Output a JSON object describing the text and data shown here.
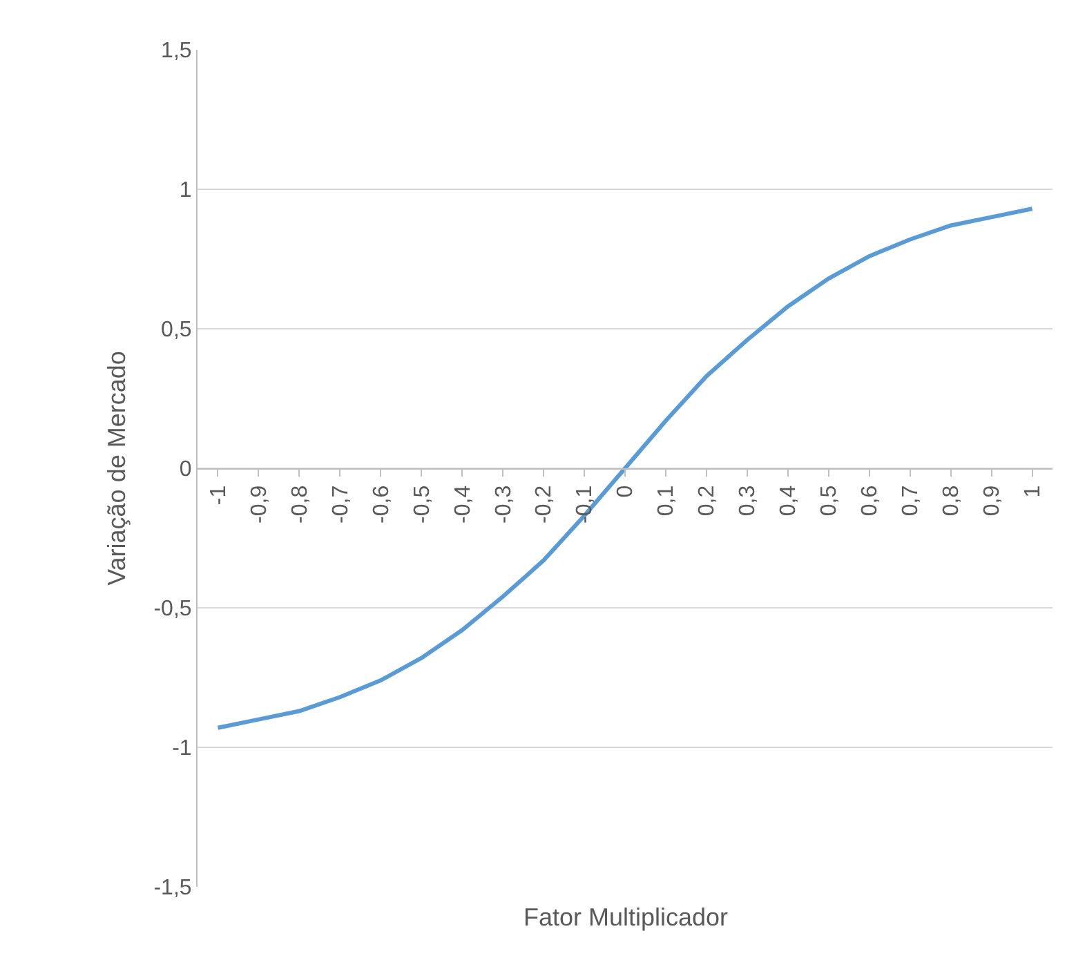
{
  "chart_data": {
    "type": "line",
    "xlabel": "Fator Multiplicador",
    "ylabel": "Variação de Mercado",
    "categories": [
      "-1",
      "-0,9",
      "-0,8",
      "-0,7",
      "-0,6",
      "-0,5",
      "-0,4",
      "-0,3",
      "-0,2",
      "-0,1",
      "0",
      "0,1",
      "0,2",
      "0,3",
      "0,4",
      "0,5",
      "0,6",
      "0,7",
      "0,8",
      "0,9",
      "1"
    ],
    "series": [
      {
        "color": "#5b9bd5",
        "values": [
          -0.93,
          -0.9,
          -0.87,
          -0.82,
          -0.76,
          -0.68,
          -0.58,
          -0.46,
          -0.33,
          -0.17,
          0,
          0.17,
          0.33,
          0.46,
          0.58,
          0.68,
          0.76,
          0.82,
          0.87,
          0.9,
          0.93
        ]
      }
    ],
    "ylim": [
      -1.5,
      1.5
    ],
    "yticks": [
      {
        "value": -1.5,
        "label": "-1,5"
      },
      {
        "value": -1,
        "label": "-1"
      },
      {
        "value": -0.5,
        "label": "-0,5"
      },
      0,
      {
        "value": 0.5,
        "label": "0,5"
      },
      1,
      {
        "value": 1.5,
        "label": "1,5"
      }
    ],
    "grid": "y",
    "marker": "none",
    "line_style": "solid"
  }
}
